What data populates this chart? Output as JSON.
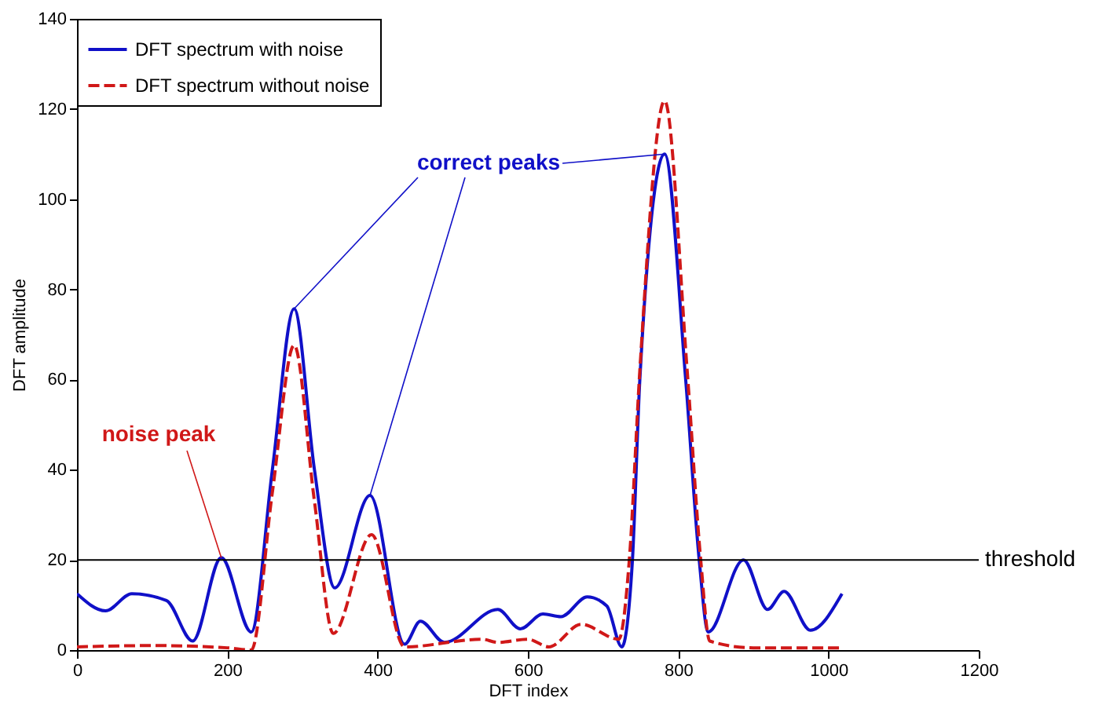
{
  "chart_data": {
    "type": "line",
    "xlabel": "DFT index",
    "ylabel": "DFT amplitude",
    "xlim": [
      0,
      1200
    ],
    "ylim": [
      0,
      140
    ],
    "xticks": [
      0,
      200,
      400,
      600,
      800,
      1000,
      1200
    ],
    "yticks": [
      0,
      20,
      40,
      60,
      80,
      100,
      120,
      140
    ],
    "legend": "top left",
    "series": [
      {
        "name": "DFT spectrum with noise",
        "color": "#1010c8",
        "line_style": "solid",
        "x": [
          0,
          38,
          73,
          119,
          154,
          192,
          232,
          260,
          289,
          316,
          343,
          390,
          436,
          457,
          489,
          560,
          590,
          620,
          644,
          679,
          705,
          725,
          739,
          749,
          782,
          810,
          828,
          840,
          887,
          919,
          941,
          976,
          1018
        ],
        "values": [
          12.5,
          8.7,
          12.5,
          11,
          2,
          20.5,
          4,
          40,
          75.7,
          40,
          13.8,
          34.3,
          1.3,
          6.4,
          1.7,
          9,
          4.7,
          8,
          7.4,
          11.8,
          9.8,
          0.7,
          19.5,
          60,
          110,
          60,
          20,
          4,
          20,
          9,
          13,
          4.4,
          12.5
        ]
      },
      {
        "name": "DFT spectrum without noise",
        "color": "#d01818",
        "line_style": "dashed",
        "x": [
          0,
          100,
          200,
          232,
          260,
          289,
          316,
          341,
          392,
          436,
          539,
          560,
          600,
          628,
          671,
          721,
          735,
          749,
          782,
          812,
          830,
          842,
          900,
          1018
        ],
        "values": [
          0.7,
          1,
          0.5,
          0,
          35,
          67.6,
          33,
          3.7,
          25.6,
          0.7,
          2.4,
          1.7,
          2.4,
          0.7,
          5.7,
          2.4,
          20,
          62,
          121.8,
          62,
          20,
          2,
          0.5,
          0.5
        ]
      }
    ],
    "ref_lines": [
      {
        "axis": "y",
        "value": 20,
        "label": "threshold"
      }
    ],
    "annotations": [
      {
        "text": "correct peaks",
        "x": 782,
        "y": 110
      },
      {
        "text": "noise peak",
        "x": 192,
        "y": 20.5
      }
    ]
  }
}
